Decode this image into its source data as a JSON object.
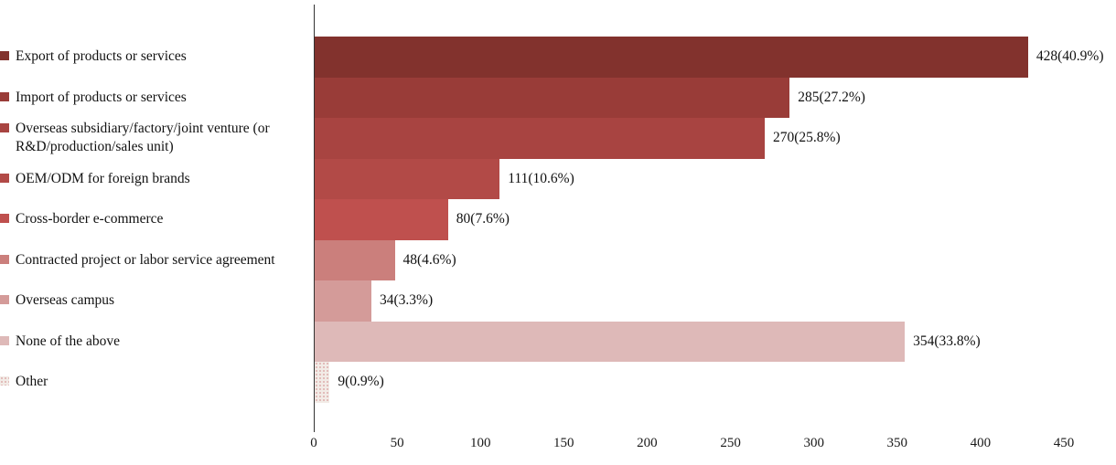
{
  "chart_data": {
    "type": "bar",
    "orientation": "horizontal",
    "title": "",
    "xlabel": "",
    "ylabel": "",
    "xlim": [
      0,
      450
    ],
    "x_ticks": [
      0,
      50,
      100,
      150,
      200,
      250,
      300,
      350,
      400,
      450
    ],
    "grid": false,
    "legend_position": "category-markers-left",
    "categories": [
      "Export of products or services",
      "Import of products or services",
      "Overseas subsidiary/factory/joint venture (or R&D/production/sales unit)",
      "OEM/ODM for foreign brands",
      "Cross-border e-commerce",
      "Contracted project or labor service agreement",
      "Overseas campus",
      "None of the above",
      "Other"
    ],
    "values": [
      428,
      285,
      270,
      111,
      80,
      48,
      34,
      354,
      9
    ],
    "percentages": [
      40.9,
      27.2,
      25.8,
      10.6,
      7.6,
      4.6,
      3.3,
      33.8,
      0.9
    ],
    "data_labels": [
      "428(40.9%)",
      "285(27.2%)",
      "270(25.8%)",
      "111(10.6%)",
      "80(7.6%)",
      "48(4.6%)",
      "34(3.3%)",
      "354(33.8%)",
      "9(0.9%)"
    ],
    "bar_colors": [
      "#82322d",
      "#993c38",
      "#a84441",
      "#b24a47",
      "#bf504e",
      "#cb7f7c",
      "#d49b99",
      "#deb9b8",
      "#f2ebe6"
    ],
    "bar_fill_styles": [
      "solid",
      "solid",
      "solid",
      "solid",
      "solid",
      "solid",
      "solid",
      "solid",
      "dots"
    ],
    "axis_color": "#333333",
    "text_color": "#111111"
  }
}
